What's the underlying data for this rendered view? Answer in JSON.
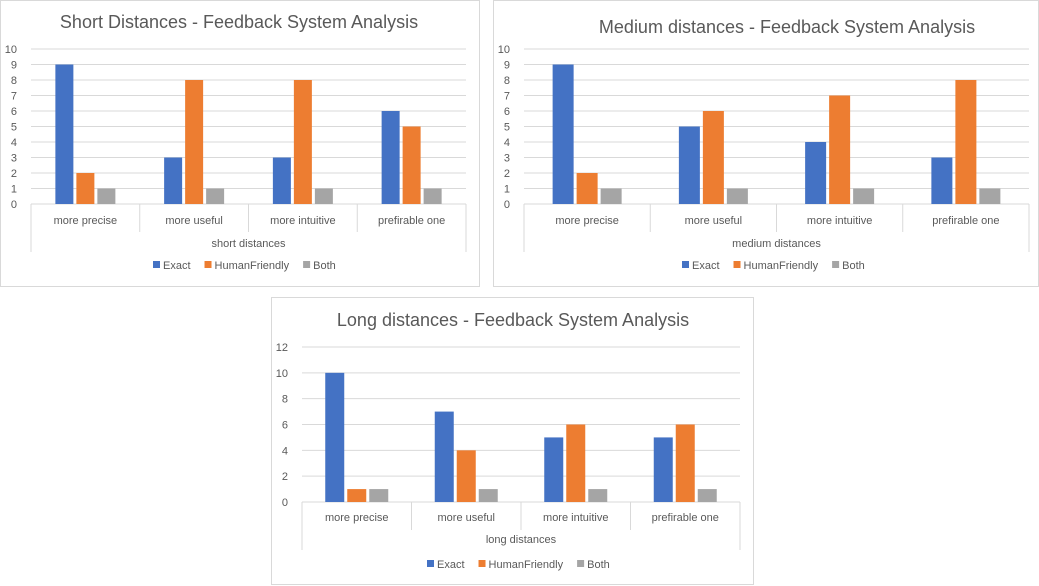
{
  "colors": {
    "Exact": "#4472c4",
    "HumanFriendly": "#ed7d31",
    "Both": "#a5a5a5"
  },
  "chart_data": [
    {
      "type": "bar",
      "title": "Short Distances - Feedback System Analysis",
      "xlabel": "short distances",
      "ylabel": "",
      "ylim": [
        0,
        10
      ],
      "yticks": [
        0,
        1,
        2,
        3,
        4,
        5,
        6,
        7,
        8,
        9,
        10
      ],
      "grid": true,
      "legend": "bottom",
      "categories": [
        "more precise",
        "more useful",
        "more intuitive",
        "prefirable one"
      ],
      "series": [
        {
          "name": "Exact",
          "values": [
            9,
            3,
            3,
            6
          ]
        },
        {
          "name": "HumanFriendly",
          "values": [
            2,
            8,
            8,
            5
          ]
        },
        {
          "name": "Both",
          "values": [
            1,
            1,
            1,
            1
          ]
        }
      ]
    },
    {
      "type": "bar",
      "title": "Medium distances - Feedback System Analysis",
      "xlabel": "medium distances",
      "ylabel": "",
      "ylim": [
        0,
        10
      ],
      "yticks": [
        0,
        1,
        2,
        3,
        4,
        5,
        6,
        7,
        8,
        9,
        10
      ],
      "grid": true,
      "legend": "bottom",
      "categories": [
        "more precise",
        "more useful",
        "more intuitive",
        "prefirable one"
      ],
      "series": [
        {
          "name": "Exact",
          "values": [
            9,
            5,
            4,
            3
          ]
        },
        {
          "name": "HumanFriendly",
          "values": [
            2,
            6,
            7,
            8
          ]
        },
        {
          "name": "Both",
          "values": [
            1,
            1,
            1,
            1
          ]
        }
      ]
    },
    {
      "type": "bar",
      "title": "Long distances - Feedback System Analysis",
      "xlabel": "long distances",
      "ylabel": "",
      "ylim": [
        0,
        12
      ],
      "yticks": [
        0,
        2,
        4,
        6,
        8,
        10,
        12
      ],
      "grid": true,
      "legend": "bottom",
      "categories": [
        "more precise",
        "more useful",
        "more intuitive",
        "prefirable one"
      ],
      "series": [
        {
          "name": "Exact",
          "values": [
            10,
            7,
            5,
            5
          ]
        },
        {
          "name": "HumanFriendly",
          "values": [
            1,
            4,
            6,
            6
          ]
        },
        {
          "name": "Both",
          "values": [
            1,
            1,
            1,
            1
          ]
        }
      ]
    }
  ]
}
